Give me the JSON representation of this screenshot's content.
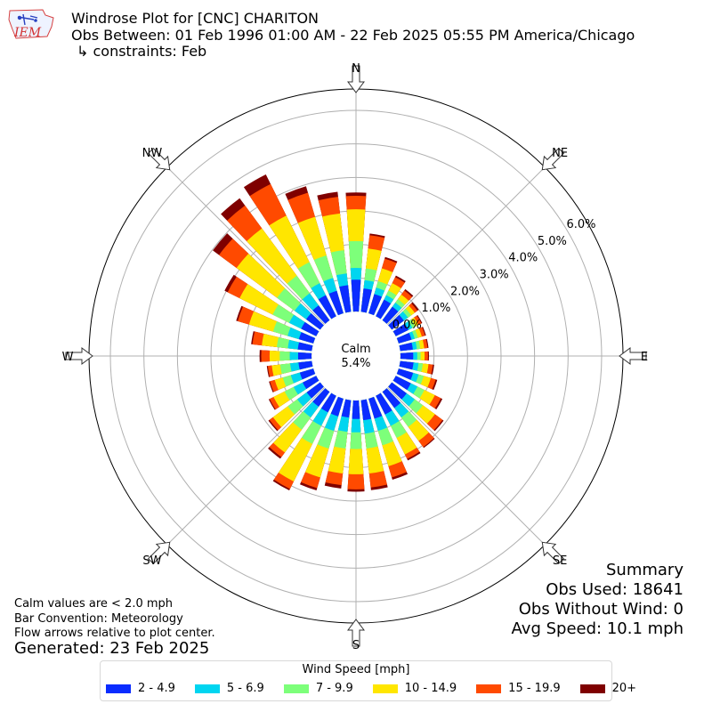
{
  "header": {
    "logo_text": "IEM",
    "title": "Windrose Plot for [CNC] CHARITON",
    "obs_between": "Obs Between: 01 Feb 1996 01:00 AM - 22 Feb 2025 05:55 PM America/Chicago",
    "constraints": "↳ constraints: Feb"
  },
  "notes": {
    "calm_def": "Calm values are < 2.0 mph",
    "convention": "Bar Convention: Meteorology",
    "arrows": "Flow arrows relative to plot center.",
    "generated": "Generated: 23 Feb 2025"
  },
  "summary": {
    "title": "Summary",
    "obs_used": "Obs Used: 18641",
    "obs_no_wind": "Obs Without Wind: 0",
    "avg_speed": "Avg Speed: 10.1 mph"
  },
  "legend": {
    "title": "Wind Speed [mph]",
    "items": [
      {
        "label": "2 - 4.9",
        "color": "#0a2cff"
      },
      {
        "label": "5 - 6.9",
        "color": "#00d5f0"
      },
      {
        "label": "7 - 9.9",
        "color": "#7dff7a"
      },
      {
        "label": "10 - 14.9",
        "color": "#ffe600"
      },
      {
        "label": "15 - 19.9",
        "color": "#ff4a00"
      },
      {
        "label": "20+",
        "color": "#7f0000"
      }
    ]
  },
  "chart_data": {
    "type": "windrose",
    "calm": {
      "label": "Calm",
      "value": "5.4%"
    },
    "direction_labels": [
      "N",
      "NE",
      "E",
      "SE",
      "S",
      "SW",
      "W",
      "NW"
    ],
    "radial_ticks": [
      "0.0%",
      "1.0%",
      "2.0%",
      "3.0%",
      "4.0%",
      "5.0%",
      "6.0%"
    ],
    "speed_bins": [
      "2 - 4.9",
      "5 - 6.9",
      "7 - 9.9",
      "10 - 14.9",
      "15 - 19.9",
      "20+"
    ],
    "directions_deg": [
      0,
      10,
      20,
      30,
      40,
      50,
      60,
      70,
      80,
      90,
      100,
      110,
      120,
      130,
      140,
      150,
      160,
      170,
      180,
      190,
      200,
      210,
      220,
      230,
      240,
      250,
      260,
      270,
      280,
      290,
      300,
      310,
      320,
      330,
      340,
      350
    ],
    "cumulative_percent": [
      [
        0.95,
        1.3,
        2.1,
        3.05,
        3.45,
        3.55
      ],
      [
        0.7,
        0.95,
        1.3,
        1.9,
        2.3,
        2.35
      ],
      [
        0.6,
        0.8,
        1.0,
        1.4,
        1.7,
        1.75
      ],
      [
        0.55,
        0.7,
        0.85,
        1.1,
        1.3,
        1.35
      ],
      [
        0.5,
        0.65,
        0.78,
        0.95,
        1.1,
        1.15
      ],
      [
        0.45,
        0.6,
        0.72,
        0.85,
        0.95,
        1.0
      ],
      [
        0.42,
        0.55,
        0.65,
        0.75,
        0.85,
        0.88
      ],
      [
        0.4,
        0.5,
        0.6,
        0.72,
        0.82,
        0.85
      ],
      [
        0.38,
        0.5,
        0.6,
        0.72,
        0.82,
        0.85
      ],
      [
        0.38,
        0.5,
        0.6,
        0.72,
        0.82,
        0.85
      ],
      [
        0.4,
        0.55,
        0.68,
        0.85,
        0.98,
        1.02
      ],
      [
        0.45,
        0.62,
        0.78,
        1.0,
        1.15,
        1.2
      ],
      [
        0.5,
        0.72,
        0.95,
        1.3,
        1.5,
        1.55
      ],
      [
        0.55,
        0.85,
        1.15,
        1.6,
        1.88,
        1.92
      ],
      [
        0.6,
        0.95,
        1.3,
        1.82,
        2.05,
        2.08
      ],
      [
        0.62,
        1.0,
        1.4,
        1.95,
        2.1,
        2.15
      ],
      [
        0.62,
        1.0,
        1.45,
        2.1,
        2.45,
        2.52
      ],
      [
        0.6,
        1.0,
        1.45,
        2.2,
        2.62,
        2.7
      ],
      [
        0.55,
        0.95,
        1.45,
        2.2,
        2.65,
        2.72
      ],
      [
        0.52,
        0.95,
        1.45,
        2.2,
        2.55,
        2.65
      ],
      [
        0.55,
        1.0,
        1.55,
        2.45,
        2.78,
        2.85
      ],
      [
        0.55,
        1.0,
        1.6,
        2.85,
        3.1,
        3.15
      ],
      [
        0.55,
        0.95,
        1.4,
        2.25,
        2.42,
        2.48
      ],
      [
        0.5,
        0.85,
        1.2,
        1.75,
        1.88,
        1.92
      ],
      [
        0.45,
        0.75,
        1.05,
        1.42,
        1.55,
        1.58
      ],
      [
        0.42,
        0.7,
        0.95,
        1.2,
        1.35,
        1.38
      ],
      [
        0.4,
        0.65,
        0.95,
        1.2,
        1.32,
        1.35
      ],
      [
        0.4,
        0.65,
        0.95,
        1.25,
        1.5,
        1.55
      ],
      [
        0.42,
        0.72,
        1.05,
        1.5,
        1.78,
        1.82
      ],
      [
        0.45,
        0.8,
        1.25,
        2.0,
        2.35,
        2.4
      ],
      [
        0.5,
        0.9,
        1.45,
        2.55,
        2.95,
        3.05
      ],
      [
        0.52,
        0.95,
        1.6,
        3.1,
        3.75,
        3.98
      ],
      [
        0.55,
        1.0,
        1.65,
        3.4,
        4.25,
        4.52
      ],
      [
        0.7,
        1.1,
        1.8,
        3.35,
        4.4,
        4.72
      ],
      [
        0.7,
        1.1,
        1.8,
        3.0,
        3.75,
        3.95
      ],
      [
        0.8,
        1.15,
        1.85,
        2.95,
        3.45,
        3.6
      ]
    ]
  }
}
